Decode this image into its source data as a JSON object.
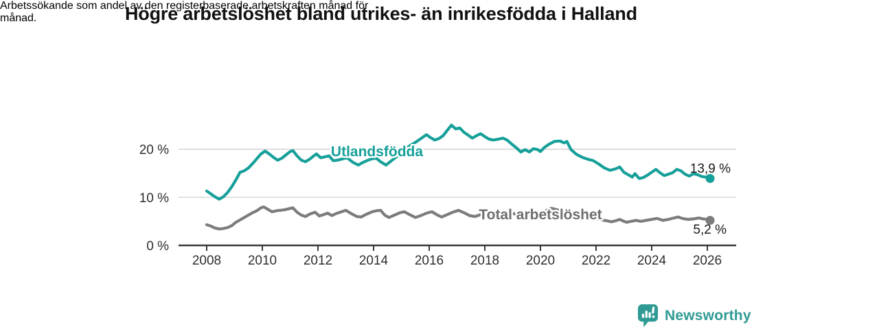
{
  "header": {
    "title": "Högre arbetslöshet bland utrikes- än inrikesfödda i Halland",
    "subtitle_line1": "Arbetssökande som andel av den registerbaserade arbetskraften månad för",
    "subtitle_line2": "månad."
  },
  "footer": {
    "brand": "Newsworthy",
    "brand_color": "#2f9a94"
  },
  "chart_data": {
    "type": "line",
    "title": "Högre arbetslöshet bland utrikes- än inrikesfödda i Halland",
    "subtitle": "Arbetssökande som andel av den registerbaserade arbetskraften månad för månad.",
    "xlabel": "",
    "ylabel": "",
    "x_ticks": [
      2008,
      2010,
      2012,
      2014,
      2016,
      2018,
      2020,
      2022,
      2024,
      2026
    ],
    "y_ticks": [
      0,
      10,
      20
    ],
    "y_tick_suffix": " %",
    "xlim": [
      2007.1,
      2027.0
    ],
    "ylim": [
      0,
      26
    ],
    "grid": "horizontal-only",
    "legend_position": "inline-labels",
    "colors": {
      "axis": "#383838",
      "grid": "#cccccc",
      "tick_text": "#2e2e2e"
    },
    "series": [
      {
        "name": "Utlandsfödda",
        "color": "#16a099",
        "label_color": "#16a099",
        "end_label": "13,9 %",
        "last_value": 13.9,
        "points": [
          [
            2008.0,
            11.3
          ],
          [
            2008.15,
            10.7
          ],
          [
            2008.3,
            10.1
          ],
          [
            2008.45,
            9.6
          ],
          [
            2008.6,
            10.1
          ],
          [
            2008.75,
            11.0
          ],
          [
            2008.9,
            12.2
          ],
          [
            2009.05,
            13.6
          ],
          [
            2009.2,
            15.2
          ],
          [
            2009.35,
            15.5
          ],
          [
            2009.5,
            16.1
          ],
          [
            2009.65,
            17.0
          ],
          [
            2009.8,
            18.0
          ],
          [
            2009.95,
            19.0
          ],
          [
            2010.1,
            19.6
          ],
          [
            2010.25,
            19.0
          ],
          [
            2010.4,
            18.3
          ],
          [
            2010.55,
            17.7
          ],
          [
            2010.7,
            18.1
          ],
          [
            2010.85,
            18.8
          ],
          [
            2011.0,
            19.5
          ],
          [
            2011.1,
            19.7
          ],
          [
            2011.25,
            18.6
          ],
          [
            2011.4,
            17.7
          ],
          [
            2011.55,
            17.4
          ],
          [
            2011.7,
            17.9
          ],
          [
            2011.85,
            18.6
          ],
          [
            2011.95,
            19.0
          ],
          [
            2012.1,
            18.2
          ],
          [
            2012.25,
            18.4
          ],
          [
            2012.4,
            18.6
          ],
          [
            2012.55,
            17.6
          ],
          [
            2012.7,
            17.7
          ],
          [
            2012.9,
            18.0
          ],
          [
            2013.05,
            18.2
          ],
          [
            2013.25,
            17.3
          ],
          [
            2013.45,
            16.7
          ],
          [
            2013.6,
            17.2
          ],
          [
            2013.8,
            17.7
          ],
          [
            2013.95,
            18.0
          ],
          [
            2014.1,
            18.1
          ],
          [
            2014.25,
            17.4
          ],
          [
            2014.45,
            16.7
          ],
          [
            2014.6,
            17.4
          ],
          [
            2014.8,
            18.3
          ],
          [
            2014.95,
            19.0
          ],
          [
            2015.1,
            19.7
          ],
          [
            2015.3,
            20.7
          ],
          [
            2015.5,
            21.4
          ],
          [
            2015.7,
            22.2
          ],
          [
            2015.9,
            23.0
          ],
          [
            2016.05,
            22.4
          ],
          [
            2016.2,
            21.9
          ],
          [
            2016.35,
            22.2
          ],
          [
            2016.5,
            22.8
          ],
          [
            2016.65,
            23.9
          ],
          [
            2016.8,
            25.0
          ],
          [
            2016.95,
            24.2
          ],
          [
            2017.1,
            24.4
          ],
          [
            2017.25,
            23.5
          ],
          [
            2017.4,
            22.9
          ],
          [
            2017.55,
            22.3
          ],
          [
            2017.7,
            22.8
          ],
          [
            2017.85,
            23.2
          ],
          [
            2018.0,
            22.6
          ],
          [
            2018.15,
            22.1
          ],
          [
            2018.3,
            21.9
          ],
          [
            2018.5,
            22.1
          ],
          [
            2018.65,
            22.3
          ],
          [
            2018.8,
            21.9
          ],
          [
            2019.0,
            20.9
          ],
          [
            2019.15,
            20.2
          ],
          [
            2019.3,
            19.4
          ],
          [
            2019.45,
            19.9
          ],
          [
            2019.6,
            19.4
          ],
          [
            2019.75,
            20.1
          ],
          [
            2019.9,
            19.9
          ],
          [
            2020.0,
            19.5
          ],
          [
            2020.15,
            20.4
          ],
          [
            2020.3,
            21.0
          ],
          [
            2020.5,
            21.6
          ],
          [
            2020.7,
            21.7
          ],
          [
            2020.85,
            21.3
          ],
          [
            2020.95,
            21.6
          ],
          [
            2021.1,
            19.9
          ],
          [
            2021.3,
            18.9
          ],
          [
            2021.5,
            18.3
          ],
          [
            2021.7,
            17.9
          ],
          [
            2021.9,
            17.6
          ],
          [
            2022.1,
            16.9
          ],
          [
            2022.3,
            16.1
          ],
          [
            2022.5,
            15.6
          ],
          [
            2022.7,
            15.9
          ],
          [
            2022.85,
            16.3
          ],
          [
            2023.0,
            15.2
          ],
          [
            2023.15,
            14.7
          ],
          [
            2023.3,
            14.2
          ],
          [
            2023.4,
            14.9
          ],
          [
            2023.55,
            13.9
          ],
          [
            2023.7,
            14.1
          ],
          [
            2023.85,
            14.6
          ],
          [
            2024.0,
            15.2
          ],
          [
            2024.15,
            15.8
          ],
          [
            2024.3,
            15.1
          ],
          [
            2024.45,
            14.5
          ],
          [
            2024.6,
            14.8
          ],
          [
            2024.75,
            15.1
          ],
          [
            2024.9,
            15.8
          ],
          [
            2025.05,
            15.5
          ],
          [
            2025.2,
            14.8
          ],
          [
            2025.35,
            14.4
          ],
          [
            2025.5,
            14.9
          ],
          [
            2025.65,
            14.7
          ],
          [
            2025.8,
            14.3
          ],
          [
            2025.95,
            14.2
          ],
          [
            2026.1,
            13.9
          ]
        ]
      },
      {
        "name": "Total arbetslöshet",
        "color": "#7c7c7c",
        "label_color": "#6e6e6e",
        "end_label": "5,2 %",
        "last_value": 5.2,
        "points": [
          [
            2008.0,
            4.3
          ],
          [
            2008.15,
            4.0
          ],
          [
            2008.3,
            3.6
          ],
          [
            2008.45,
            3.4
          ],
          [
            2008.6,
            3.5
          ],
          [
            2008.75,
            3.7
          ],
          [
            2008.9,
            4.1
          ],
          [
            2009.05,
            4.8
          ],
          [
            2009.2,
            5.3
          ],
          [
            2009.35,
            5.8
          ],
          [
            2009.5,
            6.3
          ],
          [
            2009.65,
            6.8
          ],
          [
            2009.8,
            7.2
          ],
          [
            2009.95,
            7.8
          ],
          [
            2010.05,
            8.0
          ],
          [
            2010.2,
            7.5
          ],
          [
            2010.35,
            7.0
          ],
          [
            2010.5,
            7.2
          ],
          [
            2010.65,
            7.3
          ],
          [
            2010.8,
            7.4
          ],
          [
            2010.95,
            7.6
          ],
          [
            2011.1,
            7.8
          ],
          [
            2011.25,
            6.9
          ],
          [
            2011.4,
            6.3
          ],
          [
            2011.55,
            6.0
          ],
          [
            2011.7,
            6.5
          ],
          [
            2011.9,
            6.9
          ],
          [
            2012.05,
            6.1
          ],
          [
            2012.2,
            6.4
          ],
          [
            2012.35,
            6.7
          ],
          [
            2012.5,
            6.2
          ],
          [
            2012.65,
            6.6
          ],
          [
            2012.85,
            7.0
          ],
          [
            2013.0,
            7.3
          ],
          [
            2013.2,
            6.6
          ],
          [
            2013.4,
            6.0
          ],
          [
            2013.55,
            5.9
          ],
          [
            2013.75,
            6.5
          ],
          [
            2013.95,
            7.0
          ],
          [
            2014.1,
            7.2
          ],
          [
            2014.25,
            7.3
          ],
          [
            2014.4,
            6.3
          ],
          [
            2014.55,
            5.8
          ],
          [
            2014.75,
            6.3
          ],
          [
            2014.95,
            6.8
          ],
          [
            2015.1,
            7.0
          ],
          [
            2015.3,
            6.4
          ],
          [
            2015.5,
            5.8
          ],
          [
            2015.7,
            6.2
          ],
          [
            2015.9,
            6.7
          ],
          [
            2016.1,
            7.0
          ],
          [
            2016.3,
            6.3
          ],
          [
            2016.45,
            5.9
          ],
          [
            2016.65,
            6.4
          ],
          [
            2016.85,
            6.9
          ],
          [
            2017.05,
            7.3
          ],
          [
            2017.25,
            6.8
          ],
          [
            2017.45,
            6.2
          ],
          [
            2017.65,
            6.0
          ],
          [
            2017.85,
            6.4
          ],
          [
            2018.05,
            6.8
          ],
          [
            2018.25,
            6.3
          ],
          [
            2018.45,
            6.0
          ],
          [
            2018.65,
            6.2
          ],
          [
            2018.85,
            6.5
          ],
          [
            2019.05,
            6.6
          ],
          [
            2019.25,
            6.2
          ],
          [
            2019.45,
            6.0
          ],
          [
            2019.65,
            6.2
          ],
          [
            2019.85,
            6.4
          ],
          [
            2020.05,
            6.6
          ],
          [
            2020.25,
            7.4
          ],
          [
            2020.4,
            7.7
          ],
          [
            2020.6,
            7.4
          ],
          [
            2020.8,
            7.2
          ],
          [
            2021.0,
            7.1
          ],
          [
            2021.2,
            6.7
          ],
          [
            2021.4,
            6.3
          ],
          [
            2021.6,
            6.0
          ],
          [
            2021.8,
            5.8
          ],
          [
            2022.0,
            5.6
          ],
          [
            2022.2,
            5.3
          ],
          [
            2022.4,
            5.1
          ],
          [
            2022.55,
            4.9
          ],
          [
            2022.7,
            5.1
          ],
          [
            2022.85,
            5.4
          ],
          [
            2023.0,
            5.0
          ],
          [
            2023.1,
            4.8
          ],
          [
            2023.25,
            5.0
          ],
          [
            2023.45,
            5.2
          ],
          [
            2023.6,
            5.0
          ],
          [
            2023.8,
            5.2
          ],
          [
            2024.0,
            5.4
          ],
          [
            2024.2,
            5.6
          ],
          [
            2024.4,
            5.2
          ],
          [
            2024.6,
            5.4
          ],
          [
            2024.8,
            5.7
          ],
          [
            2024.95,
            5.9
          ],
          [
            2025.1,
            5.6
          ],
          [
            2025.3,
            5.4
          ],
          [
            2025.5,
            5.5
          ],
          [
            2025.7,
            5.7
          ],
          [
            2025.85,
            5.5
          ],
          [
            2026.0,
            5.4
          ],
          [
            2026.1,
            5.2
          ]
        ]
      }
    ]
  }
}
